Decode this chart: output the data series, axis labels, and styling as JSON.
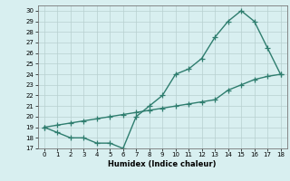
{
  "line1_x": [
    0,
    1,
    2,
    3,
    4,
    5,
    6,
    7,
    8,
    9,
    10,
    11,
    12,
    13,
    14,
    15,
    16,
    17,
    18
  ],
  "line1_y": [
    19,
    18.5,
    18,
    18,
    17.5,
    17.5,
    17,
    20,
    21,
    22,
    24,
    24.5,
    25.5,
    27.5,
    29,
    30,
    29,
    26.5,
    24
  ],
  "line2_x": [
    0,
    1,
    2,
    3,
    4,
    5,
    6,
    7,
    8,
    9,
    10,
    11,
    12,
    13,
    14,
    15,
    16,
    17,
    18
  ],
  "line2_y": [
    19,
    19.2,
    19.4,
    19.6,
    19.8,
    20.0,
    20.2,
    20.4,
    20.6,
    20.8,
    21.0,
    21.2,
    21.4,
    21.6,
    22.5,
    23.0,
    23.5,
    23.8,
    24
  ],
  "line_color": "#2e7d6e",
  "bg_color": "#d8eff0",
  "grid_color": "#b8d0d0",
  "xlabel": "Humidex (Indice chaleur)",
  "xlim": [
    -0.5,
    18.5
  ],
  "ylim": [
    17,
    30.5
  ],
  "yticks": [
    17,
    18,
    19,
    20,
    21,
    22,
    23,
    24,
    25,
    26,
    27,
    28,
    29,
    30
  ],
  "xticks": [
    0,
    1,
    2,
    3,
    4,
    5,
    6,
    7,
    8,
    9,
    10,
    11,
    12,
    13,
    14,
    15,
    16,
    17,
    18
  ],
  "marker": "+",
  "markersize": 4,
  "linewidth": 1.0
}
